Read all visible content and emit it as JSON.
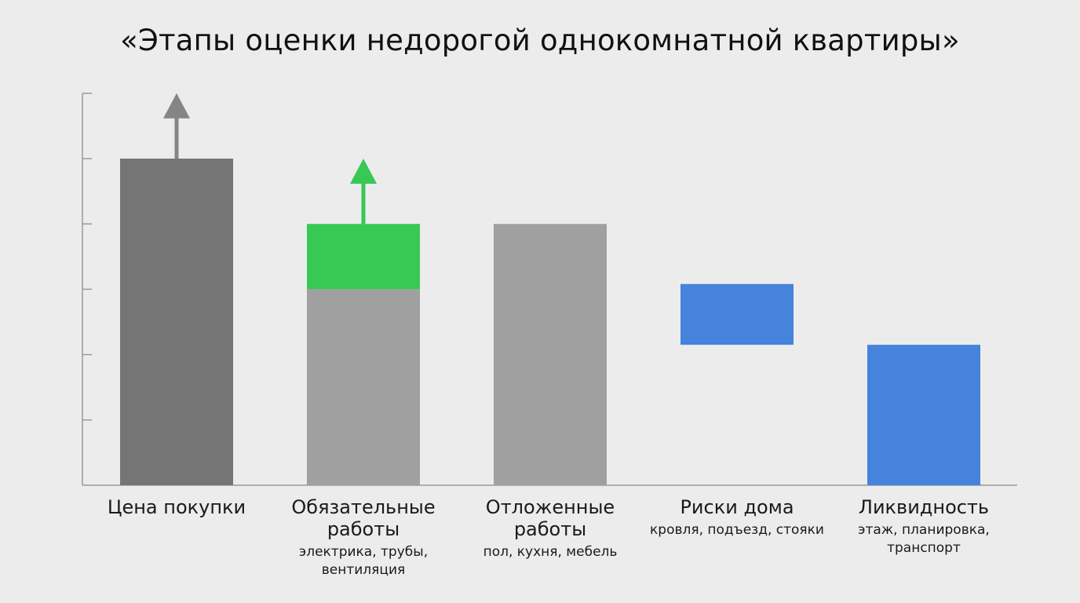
{
  "chart_data": {
    "type": "bar",
    "title": "«Этапы оценки недорогой однокомнатной квартиры»",
    "xlabel": "",
    "ylabel": "",
    "ylim": [
      0,
      6
    ],
    "y_ticks": [
      0,
      1,
      2,
      3,
      4,
      5,
      6
    ],
    "y_tick_labels_shown": false,
    "grid": false,
    "categories": [
      {
        "label": "Цена покупки",
        "sublabel": ""
      },
      {
        "label": "Обязательные работы",
        "sublabel": "электрика, трубы, вентиляция"
      },
      {
        "label": "Отложенные работы",
        "sublabel": "пол, кухня, мебель"
      },
      {
        "label": "Риски дома",
        "sublabel": "кровля, подъезд, стояки"
      },
      {
        "label": "Ликвидность",
        "sublabel": "этаж, планировка, транспорт"
      }
    ],
    "bars": [
      {
        "segments": [
          {
            "from": 0,
            "to": 5,
            "color": "#757575"
          }
        ],
        "arrow": {
          "from": 5,
          "to": 6,
          "color": "#858585"
        }
      },
      {
        "segments": [
          {
            "from": 0,
            "to": 3,
            "color": "#a0a0a0"
          },
          {
            "from": 3,
            "to": 4,
            "color": "#38c854"
          }
        ],
        "arrow": {
          "from": 4,
          "to": 5,
          "color": "#38c854"
        }
      },
      {
        "segments": [
          {
            "from": 0,
            "to": 4,
            "color": "#a0a0a0"
          }
        ]
      },
      {
        "segments": [
          {
            "from": 2.15,
            "to": 3.08,
            "color": "#4583dc"
          }
        ]
      },
      {
        "segments": [
          {
            "from": 0,
            "to": 2.15,
            "color": "#4583dc"
          }
        ]
      }
    ]
  }
}
